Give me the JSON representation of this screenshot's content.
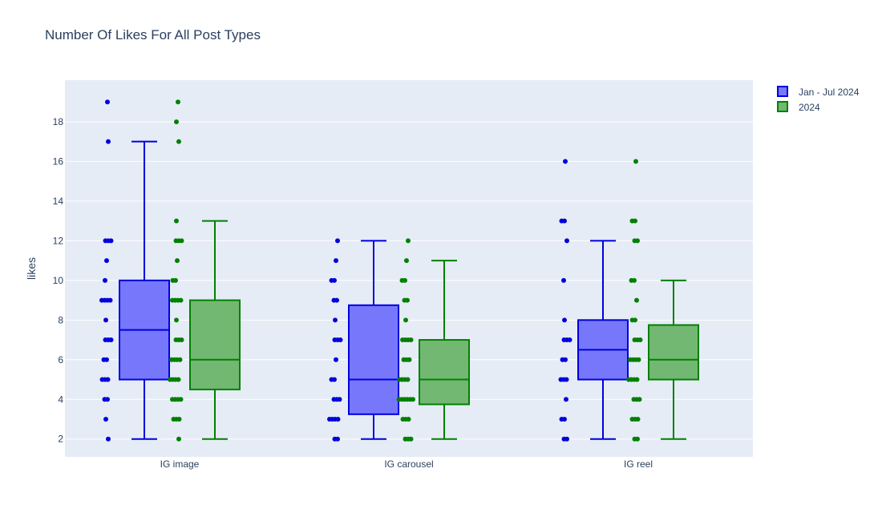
{
  "chart_data": {
    "type": "box",
    "title": "Number Of Likes For All Post Types",
    "xlabel": "",
    "ylabel": "likes",
    "categories": [
      "IG image",
      "IG carousel",
      "IG reel"
    ],
    "ylim": [
      1.1,
      20.1
    ],
    "yticks": [
      2,
      4,
      6,
      8,
      10,
      12,
      14,
      16,
      18
    ],
    "grid": true,
    "legend_position": "top-right",
    "series": [
      {
        "name": "Jan - Jul 2024",
        "line_color": "#0000dd",
        "fill_color": "#7777fc",
        "boxes": [
          {
            "min": 2,
            "q1": 5,
            "median": 7.5,
            "q3": 10,
            "max": 17,
            "points": [
              19,
              17,
              12,
              12,
              12,
              11,
              10,
              9,
              9,
              9,
              9,
              8,
              7,
              7,
              7,
              6,
              6,
              5,
              5,
              5,
              4,
              4,
              3,
              2
            ]
          },
          {
            "min": 2,
            "q1": 3.25,
            "median": 5,
            "q3": 8.75,
            "max": 12,
            "points": [
              12,
              11,
              10,
              10,
              9,
              9,
              8,
              7,
              7,
              7,
              6,
              5,
              5,
              4,
              4,
              4,
              3,
              3,
              3,
              3,
              2,
              2
            ]
          },
          {
            "min": 2,
            "q1": 5,
            "median": 6.5,
            "q3": 8,
            "max": 12,
            "points": [
              16,
              13,
              13,
              12,
              10,
              8,
              7,
              7,
              7,
              6,
              6,
              5,
              5,
              5,
              4,
              3,
              3,
              2,
              2
            ]
          }
        ]
      },
      {
        "name": "2024",
        "line_color": "#008000",
        "fill_color": "#72b872",
        "boxes": [
          {
            "min": 2,
            "q1": 4.5,
            "median": 6,
            "q3": 9,
            "max": 13,
            "points": [
              19,
              18,
              17,
              13,
              12,
              12,
              12,
              11,
              10,
              10,
              9,
              9,
              9,
              9,
              8,
              7,
              7,
              7,
              6,
              6,
              6,
              6,
              5,
              5,
              5,
              5,
              4,
              4,
              4,
              4,
              3,
              3,
              3,
              2
            ]
          },
          {
            "min": 2,
            "q1": 3.75,
            "median": 5,
            "q3": 7,
            "max": 11,
            "points": [
              12,
              11,
              10,
              10,
              9,
              9,
              8,
              7,
              7,
              7,
              7,
              6,
              6,
              6,
              5,
              5,
              5,
              5,
              4,
              4,
              4,
              4,
              4,
              4,
              3,
              3,
              3,
              2,
              2,
              2
            ]
          },
          {
            "min": 2,
            "q1": 5,
            "median": 6,
            "q3": 7.75,
            "max": 10,
            "points": [
              16,
              13,
              13,
              12,
              12,
              10,
              10,
              9,
              8,
              8,
              7,
              7,
              7,
              6,
              6,
              6,
              6,
              5,
              5,
              5,
              5,
              4,
              4,
              4,
              3,
              3,
              3,
              2,
              2
            ]
          }
        ]
      }
    ]
  }
}
